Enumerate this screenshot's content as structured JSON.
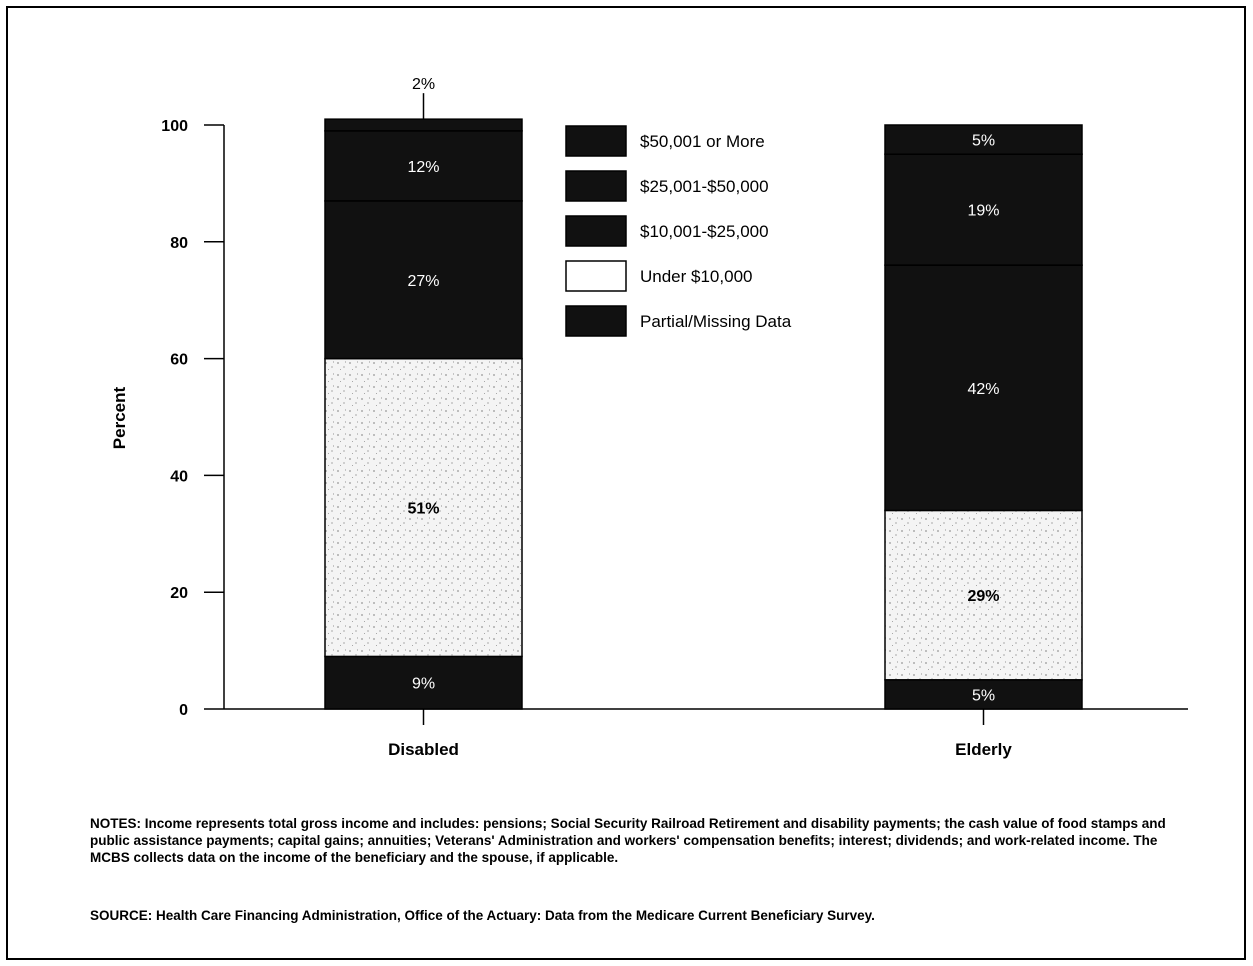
{
  "chart_data": {
    "type": "bar",
    "stacked": true,
    "categories": [
      "Disabled",
      "Elderly"
    ],
    "ylabel": "Percent",
    "ylim": [
      0,
      100
    ],
    "yticks": [
      0,
      20,
      40,
      60,
      80,
      100
    ],
    "legend_position": "top-center",
    "series": [
      {
        "name": "Partial/Missing Data",
        "values": [
          9,
          5
        ],
        "labels": [
          "9%",
          "5%"
        ],
        "color": "#111111"
      },
      {
        "name": "Under $10,000",
        "values": [
          51,
          29
        ],
        "labels": [
          "51%",
          "29%"
        ],
        "color": "#f2f2f2"
      },
      {
        "name": "$10,001-$25,000",
        "values": [
          27,
          42
        ],
        "labels": [
          "27%",
          "42%"
        ],
        "color": "#111111"
      },
      {
        "name": "$25,001-$50,000",
        "values": [
          12,
          19
        ],
        "labels": [
          "12%",
          "19%"
        ],
        "color": "#111111"
      },
      {
        "name": "$50,001 or More",
        "values": [
          2,
          5
        ],
        "labels": [
          "2%",
          "5%"
        ],
        "color": "#111111"
      }
    ],
    "legend_order": [
      "$50,001 or More",
      "$25,001-$50,000",
      "$10,001-$25,000",
      "Under $10,000",
      "Partial/Missing Data"
    ]
  },
  "notes": "NOTES:  Income represents total gross income and includes: pensions; Social Security Railroad Retirement and disability payments; the cash value of food stamps and public assistance payments; capital gains; annuities; Veterans' Administration and workers' compensation benefits; interest; dividends; and work-related income.  The MCBS collects data on the income of the beneficiary and the spouse, if applicable.",
  "source": "SOURCE: Health Care Financing Administration, Office of the Actuary: Data from the Medicare Current Beneficiary Survey."
}
